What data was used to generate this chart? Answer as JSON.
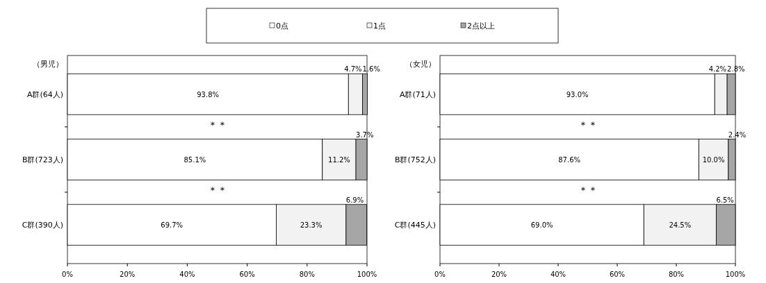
{
  "chart_data": [
    {
      "type": "bar",
      "orientation": "horizontal",
      "stacked": true,
      "title": "（男児）",
      "legend": "top",
      "categories": [
        "A群(64人)",
        "B群(723人)",
        "C群(390人)"
      ],
      "series": [
        {
          "name": "0点",
          "color": "#ffffff",
          "values": [
            93.8,
            85.1,
            69.7
          ],
          "value_labels": [
            "93.8%",
            "85.1%",
            "69.7%"
          ]
        },
        {
          "name": "1点",
          "color": "#f2f2f2",
          "values": [
            4.7,
            11.2,
            23.3
          ],
          "value_labels": [
            "4.7%",
            "11.2%",
            "23.3%"
          ]
        },
        {
          "name": "2点以上",
          "color": "#a6a6a6",
          "values": [
            1.6,
            3.7,
            6.9
          ],
          "value_labels": [
            "1.6%",
            "3.7%",
            "6.9%"
          ]
        }
      ],
      "xlim": [
        0,
        100
      ],
      "xticks": [
        {
          "value": 0,
          "label": "0%"
        },
        {
          "value": 20,
          "label": "20%"
        },
        {
          "value": 40,
          "label": "40%"
        },
        {
          "value": 60,
          "label": "60%"
        },
        {
          "value": 80,
          "label": "80%"
        },
        {
          "value": 100,
          "label": "100%"
        }
      ],
      "annotations": [
        "＊＊",
        "＊＊"
      ]
    },
    {
      "type": "bar",
      "orientation": "horizontal",
      "stacked": true,
      "title": "（女児）",
      "categories": [
        "A群(71人)",
        "B群(752人)",
        "C群(445人)"
      ],
      "series": [
        {
          "color": "#ffffff",
          "values": [
            93.0,
            87.6,
            69.0
          ],
          "value_labels": [
            "93.0%",
            "87.6%",
            "69.0%"
          ]
        },
        {
          "color": "#f2f2f2",
          "values": [
            4.2,
            10.0,
            24.5
          ],
          "value_labels": [
            "4.2%",
            "10.0%",
            "24.5%"
          ]
        },
        {
          "color": "#a6a6a6",
          "values": [
            2.8,
            2.4,
            6.5
          ],
          "value_labels": [
            "2.8%",
            "2.4%",
            "6.5%"
          ]
        }
      ],
      "xlim": [
        0,
        100
      ],
      "xticks": [
        {
          "value": 0,
          "label": "0%"
        },
        {
          "value": 20,
          "label": "20%"
        },
        {
          "value": 40,
          "label": "40%"
        },
        {
          "value": 60,
          "label": "60%"
        },
        {
          "value": 80,
          "label": "80%"
        },
        {
          "value": 100,
          "label": "100%"
        }
      ],
      "annotations": [
        "＊＊",
        "＊＊"
      ]
    }
  ]
}
